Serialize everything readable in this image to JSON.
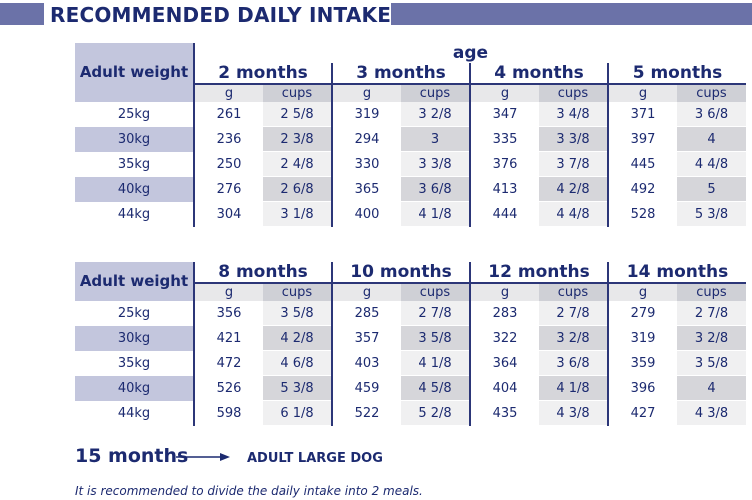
{
  "header": {
    "title": "RECOMMENDED DAILY INTAKE"
  },
  "table1": {
    "weight_header": "Adult weight",
    "age_label": "age",
    "months": [
      "2 months",
      "3 months",
      "4 months",
      "5 months"
    ],
    "units": [
      "g",
      "cups"
    ],
    "rows": [
      {
        "weight": "25kg",
        "cells": [
          "261",
          "2 5/8",
          "319",
          "3 2/8",
          "347",
          "3 4/8",
          "371",
          "3 6/8"
        ]
      },
      {
        "weight": "30kg",
        "cells": [
          "236",
          "2 3/8",
          "294",
          "3",
          "335",
          "3 3/8",
          "397",
          "4"
        ]
      },
      {
        "weight": "35kg",
        "cells": [
          "250",
          "2 4/8",
          "330",
          "3 3/8",
          "376",
          "3 7/8",
          "445",
          "4 4/8"
        ]
      },
      {
        "weight": "40kg",
        "cells": [
          "276",
          "2 6/8",
          "365",
          "3 6/8",
          "413",
          "4 2/8",
          "492",
          "5"
        ]
      },
      {
        "weight": "44kg",
        "cells": [
          "304",
          "3 1/8",
          "400",
          "4 1/8",
          "444",
          "4 4/8",
          "528",
          "5 3/8"
        ]
      }
    ]
  },
  "table2": {
    "weight_header": "Adult weight",
    "months": [
      "8 months",
      "10 months",
      "12 months",
      "14 months"
    ],
    "units": [
      "g",
      "cups"
    ],
    "rows": [
      {
        "weight": "25kg",
        "cells": [
          "356",
          "3 5/8",
          "285",
          "2 7/8",
          "283",
          "2 7/8",
          "279",
          "2 7/8"
        ]
      },
      {
        "weight": "30kg",
        "cells": [
          "421",
          "4 2/8",
          "357",
          "3 5/8",
          "322",
          "3 2/8",
          "319",
          "3 2/8"
        ]
      },
      {
        "weight": "35kg",
        "cells": [
          "472",
          "4 6/8",
          "403",
          "4 1/8",
          "364",
          "3 6/8",
          "359",
          "3 5/8"
        ]
      },
      {
        "weight": "40kg",
        "cells": [
          "526",
          "5 3/8",
          "459",
          "4 5/8",
          "404",
          "4 1/8",
          "396",
          "4"
        ]
      },
      {
        "weight": "44kg",
        "cells": [
          "598",
          "6 1/8",
          "522",
          "5 2/8",
          "435",
          "4 3/8",
          "427",
          "4 3/8"
        ]
      }
    ]
  },
  "footer": {
    "age_15": "15 months",
    "adult_label": "ADULT LARGE DOG",
    "note": "It is recommended to divide the daily intake into 2 meals."
  },
  "colors": {
    "navy": "#1c2a70",
    "band": "#6b72a8",
    "lavender": "#c3c6dd",
    "grey": "#cfd0d6"
  }
}
